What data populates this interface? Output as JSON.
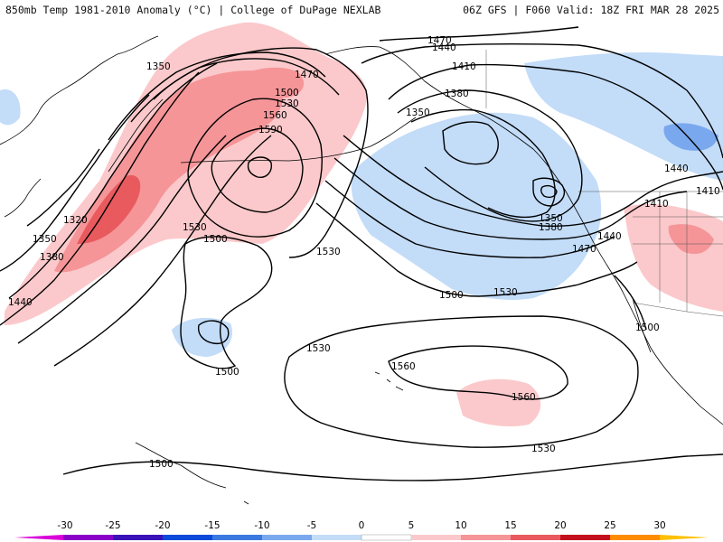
{
  "header": {
    "title_left": "850mb Temp 1981-2010 Anomaly (°C) | College of DuPage NEXLAB",
    "title_right": "06Z GFS | F060 Valid: 18Z FRI MAR 28 2025"
  },
  "colors": {
    "cold_ext": "#d900d9",
    "cold_m30": "#8b00c8",
    "cold_m25": "#3a12b8",
    "cold_m20": "#0c4ad9",
    "cold_m15": "#3a7ae0",
    "cold_m10": "#7aa8ee",
    "cold_m5": "#c3dcf8",
    "zero": "#ffffff",
    "warm_5": "#fbc9cb",
    "warm_10": "#f59598",
    "warm_15": "#e85a5e",
    "warm_20": "#c4101c",
    "warm_25": "#ff8c00",
    "warm_30": "#ffc000"
  },
  "contour_labels": [
    "1470",
    "1440",
    "1350",
    "1470",
    "1410",
    "1500",
    "1380",
    "1530",
    "1350",
    "1560",
    "1590",
    "1320",
    "1350",
    "1380",
    "1440",
    "1530",
    "1500",
    "1530",
    "1350",
    "1380",
    "1410",
    "1470",
    "1440",
    "1410",
    "1440",
    "1500",
    "1530",
    "1500",
    "1500",
    "1530",
    "1560",
    "1560",
    "1530",
    "1500"
  ],
  "colorbar": {
    "ticks": [
      "-30",
      "-25",
      "-20",
      "-15",
      "-10",
      "-5",
      "0",
      "5",
      "10",
      "15",
      "20",
      "25",
      "30"
    ]
  }
}
